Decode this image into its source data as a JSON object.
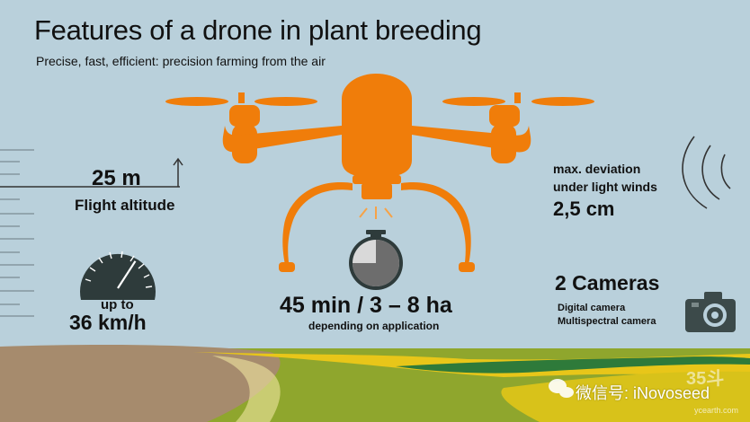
{
  "title": "Features of a drone in plant breeding",
  "subtitle": "Precise, fast, efficient: precision farming from the air",
  "altitude": {
    "value": "25 m",
    "label": "Flight altitude"
  },
  "speed": {
    "prefix": "up to",
    "value": "36 km/h",
    "gauge_level": 0.65
  },
  "flight_time": {
    "value": "45 min / 3 – 8 ha",
    "label": "depending on application",
    "timer_fraction": 0.75
  },
  "deviation": {
    "line1": "max. deviation",
    "line2": "under light winds",
    "value": "2,5 cm"
  },
  "cameras": {
    "title": "2 Cameras",
    "item1": "Digital camera",
    "item2": "Multispectral camera"
  },
  "watermark": {
    "text": "微信号: iNovoseed",
    "logo": "35斗",
    "url": "ycearth.com"
  },
  "colors": {
    "sky": "#b9d0db",
    "drone": "#f07d0a",
    "field_green": "#8fa62d",
    "field_yellow": "#e8c619",
    "soil": "#a68b6d",
    "dark": "#2e3b3b"
  }
}
